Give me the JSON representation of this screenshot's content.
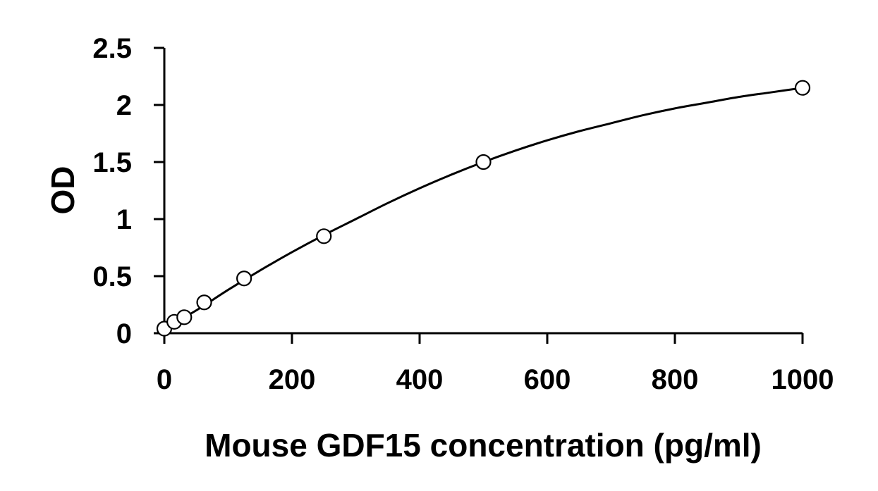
{
  "chart_data": {
    "type": "scatter",
    "xlabel": "Mouse GDF15 concentration (pg/ml)",
    "ylabel": "OD",
    "xlim": [
      0,
      1000
    ],
    "ylim": [
      0,
      2.5
    ],
    "x_ticks": [
      0,
      200,
      400,
      600,
      800,
      1000
    ],
    "x_tick_labels": [
      "0",
      "200",
      "400",
      "600",
      "800",
      "1000"
    ],
    "y_ticks": [
      0,
      0.5,
      1,
      1.5,
      2,
      2.5
    ],
    "y_tick_labels": [
      "0",
      "0.5",
      "1",
      "1.5",
      "2",
      "2.5"
    ],
    "grid": false,
    "legend": "none",
    "series": [
      {
        "marker": "open-circle",
        "points": [
          {
            "x": 0,
            "y": 0.04
          },
          {
            "x": 15.6,
            "y": 0.1
          },
          {
            "x": 31.25,
            "y": 0.14
          },
          {
            "x": 62.5,
            "y": 0.27
          },
          {
            "x": 125,
            "y": 0.48
          },
          {
            "x": 250,
            "y": 0.85
          },
          {
            "x": 500,
            "y": 1.5
          },
          {
            "x": 1000,
            "y": 2.15
          }
        ]
      }
    ],
    "trendline": {
      "type": "polynomial",
      "x": [
        0,
        50,
        100,
        150,
        200,
        250,
        300,
        350,
        400,
        450,
        500,
        550,
        600,
        650,
        700,
        750,
        800,
        850,
        900,
        950,
        1000
      ],
      "y": [
        0.04,
        0.2,
        0.38,
        0.55,
        0.71,
        0.86,
        1.0,
        1.14,
        1.27,
        1.39,
        1.5,
        1.6,
        1.69,
        1.77,
        1.84,
        1.91,
        1.97,
        2.02,
        2.07,
        2.11,
        2.15
      ]
    },
    "colors": {
      "axis": "#000000",
      "curve": "#000000",
      "marker_fill": "#ffffff",
      "background": "#ffffff"
    }
  }
}
